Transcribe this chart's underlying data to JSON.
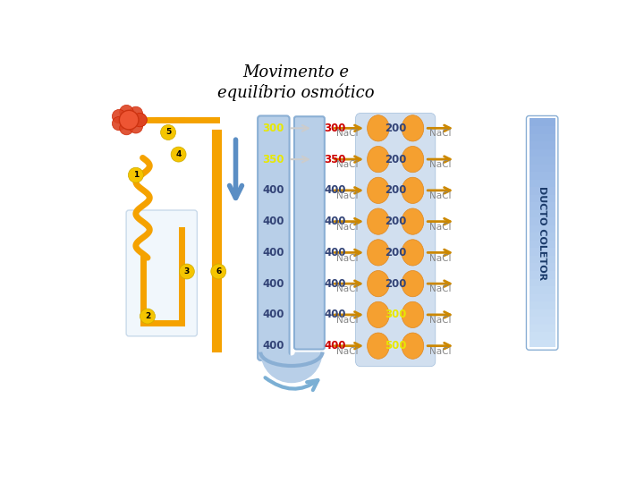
{
  "title": "Movimento e\nequilíbrio osmótico",
  "title_fontsize": 13,
  "background_color": "#ffffff",
  "rows": [
    {
      "left_val": "300",
      "left_color": "#e8e800",
      "right_val": "300",
      "right_color": "#cc0000",
      "center_val": "200",
      "center_color": "#334477",
      "arrow_row": true
    },
    {
      "left_val": "350",
      "left_color": "#e8e800",
      "right_val": "350",
      "right_color": "#cc0000",
      "center_val": "200",
      "center_color": "#334477",
      "arrow_row": true
    },
    {
      "left_val": "400",
      "left_color": "#334477",
      "right_val": "400",
      "right_color": "#334477",
      "center_val": "200",
      "center_color": "#334477",
      "arrow_row": false
    },
    {
      "left_val": "400",
      "left_color": "#334477",
      "right_val": "400",
      "right_color": "#334477",
      "center_val": "200",
      "center_color": "#334477",
      "arrow_row": false
    },
    {
      "left_val": "400",
      "left_color": "#334477",
      "right_val": "400",
      "right_color": "#334477",
      "center_val": "200",
      "center_color": "#334477",
      "arrow_row": false
    },
    {
      "left_val": "400",
      "left_color": "#334477",
      "right_val": "400",
      "right_color": "#334477",
      "center_val": "200",
      "center_color": "#334477",
      "arrow_row": false
    },
    {
      "left_val": "400",
      "left_color": "#334477",
      "right_val": "400",
      "right_color": "#334477",
      "center_val": "300",
      "center_color": "#e8e800",
      "arrow_row": false
    },
    {
      "left_val": "400",
      "left_color": "#334477",
      "right_val": "400",
      "right_color": "#cc0000",
      "center_val": "500",
      "center_color": "#e8e800",
      "arrow_row": false
    }
  ]
}
